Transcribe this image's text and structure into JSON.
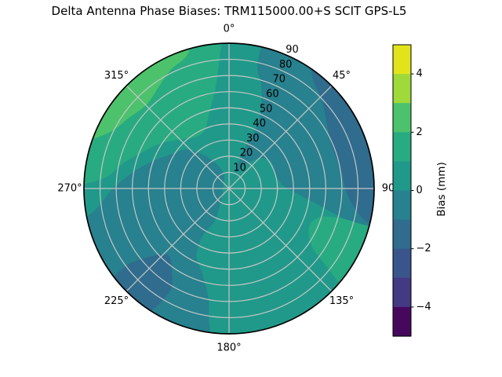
{
  "title": "Delta Antenna Phase Biases: TRM115000.00+S  SCIT GPS-L5",
  "chart_data": {
    "type": "polar_contour",
    "theta_zero_location": "N",
    "theta_direction": "clockwise",
    "theta_ticks": [
      {
        "deg": 0,
        "label": "0°"
      },
      {
        "deg": 45,
        "label": "45°"
      },
      {
        "deg": 90,
        "label": "90"
      },
      {
        "deg": 135,
        "label": "135°"
      },
      {
        "deg": 180,
        "label": "180°"
      },
      {
        "deg": 225,
        "label": "225°"
      },
      {
        "deg": 270,
        "label": "270°"
      },
      {
        "deg": 315,
        "label": "315°"
      }
    ],
    "r_ticks": [
      10,
      20,
      30,
      40,
      50,
      60,
      70,
      80,
      90
    ],
    "r_max": 90,
    "r_label_angle_deg": 24,
    "grid_color": "#c6c6c6",
    "base_region": {
      "bias_range_mm": [
        0,
        1
      ],
      "color": "#20998a"
    },
    "regions": [
      {
        "name": "west-dark-teal",
        "bias_range_mm": [
          -1,
          0
        ],
        "color": "#27818e",
        "rim_arc_deg": [
          188,
          257
        ],
        "boundary": [
          [
            262,
            82
          ],
          [
            270,
            72
          ],
          [
            280,
            60
          ],
          [
            290,
            50
          ],
          [
            300,
            42
          ],
          [
            312,
            36
          ],
          [
            322,
            27
          ],
          [
            333,
            17
          ],
          [
            340,
            10
          ],
          [
            320,
            5
          ],
          [
            270,
            4
          ],
          [
            225,
            6
          ],
          [
            208,
            12
          ],
          [
            204,
            22
          ],
          [
            209,
            34
          ],
          [
            206,
            46
          ],
          [
            197,
            56
          ],
          [
            191,
            68
          ],
          [
            189,
            80
          ]
        ]
      },
      {
        "name": "east-dark-teal",
        "bias_range_mm": [
          -1,
          0
        ],
        "color": "#27818e",
        "rim_arc_deg": [
          14,
          106
        ],
        "boundary": [
          [
            106,
            84
          ],
          [
            104,
            70
          ],
          [
            100,
            55
          ],
          [
            94,
            42
          ],
          [
            86,
            33
          ],
          [
            72,
            30
          ],
          [
            58,
            31
          ],
          [
            46,
            27
          ],
          [
            34,
            18
          ],
          [
            25,
            11
          ],
          [
            20,
            16
          ],
          [
            22,
            30
          ],
          [
            24,
            44
          ],
          [
            21,
            56
          ],
          [
            17,
            68
          ],
          [
            13,
            78
          ]
        ]
      },
      {
        "name": "east-rim-blue",
        "bias_range_mm": [
          -2,
          -1
        ],
        "color": "#2f6c8e",
        "rim_arc_deg": [
          33,
          104
        ],
        "boundary": [
          [
            103,
            86
          ],
          [
            99,
            79
          ],
          [
            92,
            73
          ],
          [
            80,
            70
          ],
          [
            68,
            69
          ],
          [
            58,
            72
          ],
          [
            50,
            77
          ],
          [
            44,
            81
          ],
          [
            38,
            85
          ]
        ]
      },
      {
        "name": "southwest-blue-blob",
        "bias_range_mm": [
          -2,
          -1
        ],
        "color": "#2f6c8e",
        "rim_arc_deg": [
          214,
          232
        ],
        "boundary": [
          [
            233,
            78
          ],
          [
            228,
            62
          ],
          [
            222,
            56
          ],
          [
            215,
            62
          ],
          [
            210,
            74
          ]
        ]
      },
      {
        "name": "northwest-green",
        "bias_range_mm": [
          1,
          2
        ],
        "color": "#28ab81",
        "rim_arc_deg": [
          272,
          357
        ],
        "boundary": [
          [
            356,
            82
          ],
          [
            352,
            62
          ],
          [
            345,
            48
          ],
          [
            337,
            39
          ],
          [
            327,
            38
          ],
          [
            315,
            43
          ],
          [
            303,
            51
          ],
          [
            293,
            58
          ],
          [
            283,
            68
          ],
          [
            275,
            77
          ]
        ]
      },
      {
        "name": "southeast-green-blob",
        "bias_range_mm": [
          1,
          2
        ],
        "color": "#28ab81",
        "rim_arc_deg": [
          106,
          131
        ],
        "boundary": [
          [
            129,
            80
          ],
          [
            125,
            63
          ],
          [
            115,
            55
          ],
          [
            107,
            60
          ],
          [
            105,
            72
          ],
          [
            105,
            82
          ]
        ]
      },
      {
        "name": "northwest-rim-bright-green",
        "bias_range_mm": [
          2,
          3
        ],
        "color": "#4dc26c",
        "rim_arc_deg": [
          289,
          345
        ],
        "boundary": [
          [
            342,
            86
          ],
          [
            334,
            82
          ],
          [
            326,
            77
          ],
          [
            316,
            73
          ],
          [
            305,
            76
          ],
          [
            295,
            82
          ]
        ]
      }
    ],
    "colorbar": {
      "label": "Bias (mm)",
      "min": -5,
      "max": 5,
      "tick_values": [
        4,
        2,
        0,
        -2,
        -4
      ],
      "tick_labels": [
        "4",
        "2",
        "0",
        "−2",
        "−4"
      ],
      "segment_colors_top_to_bottom": [
        "#e2e41b",
        "#9fda3a",
        "#4dc26c",
        "#28ab81",
        "#20998a",
        "#27818e",
        "#2f6c8e",
        "#3a548c",
        "#443983",
        "#46085c"
      ]
    }
  }
}
